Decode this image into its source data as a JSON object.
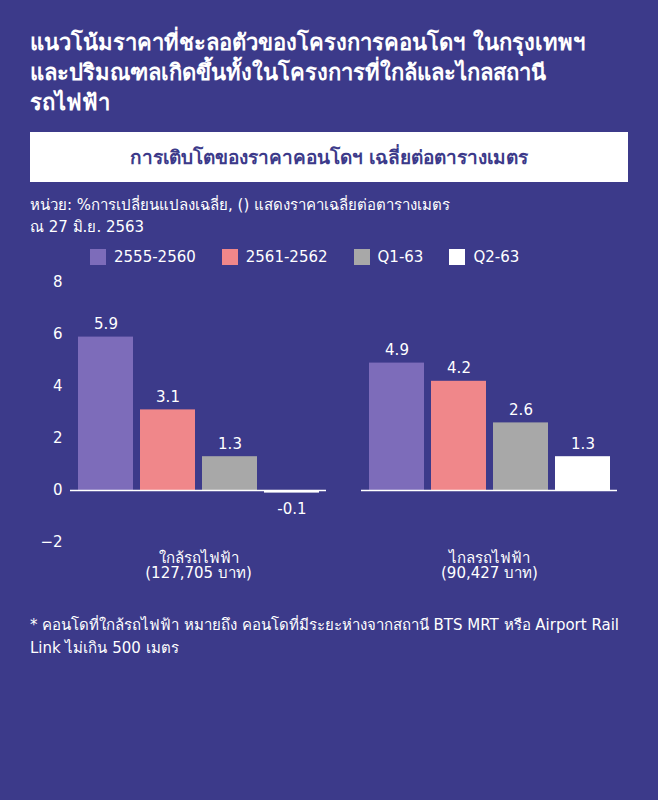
{
  "title": "แนวโน้มราคาที่ชะลอตัวของโครงการคอนโดฯ ในกรุงเทพฯ และปริมณฑลเกิดขึ้นทั้งในโครงการที่ใกล้และไกลสถานีรถไฟฟ้า",
  "chart_data": {
    "type": "bar",
    "subtitle": "การเติบโตของราคาคอนโดฯ เฉลี่ยต่อตารางเมตร",
    "units": "หน่วย: %การเปลี่ยนแปลงเฉลี่ย, () แสดงราคาเฉลี่ยต่อตารางเมตร",
    "date": "ณ 27 มิ.ย. 2563",
    "categories": [
      "ใกล้รถไฟฟ้า",
      "ไกลรถไฟฟ้า"
    ],
    "category_notes": [
      "(127,705 บาท)",
      "(90,427 บาท)"
    ],
    "series": [
      {
        "name": "2555-2560",
        "color": "#7d6cba",
        "values": [
          5.9,
          4.9
        ]
      },
      {
        "name": "2561-2562",
        "color": "#f0878a",
        "values": [
          3.1,
          4.2
        ]
      },
      {
        "name": "Q1-63",
        "color": "#a8a8a8",
        "values": [
          1.3,
          2.6
        ]
      },
      {
        "name": "Q2-63",
        "color": "#ffffff",
        "values": [
          -0.1,
          1.3
        ]
      }
    ],
    "ylim": [
      -2,
      8
    ],
    "yticks": [
      -2,
      0,
      2,
      4,
      6,
      8
    ],
    "grid": false,
    "legend": "top",
    "data_labels": true,
    "footnote": "* คอนโดที่ใกล้รถไฟฟ้า หมายถึง คอนโดที่มีระยะห่างจากสถานี BTS MRT หรือ Airport Rail Link ไม่เกิน 500 เมตร"
  }
}
